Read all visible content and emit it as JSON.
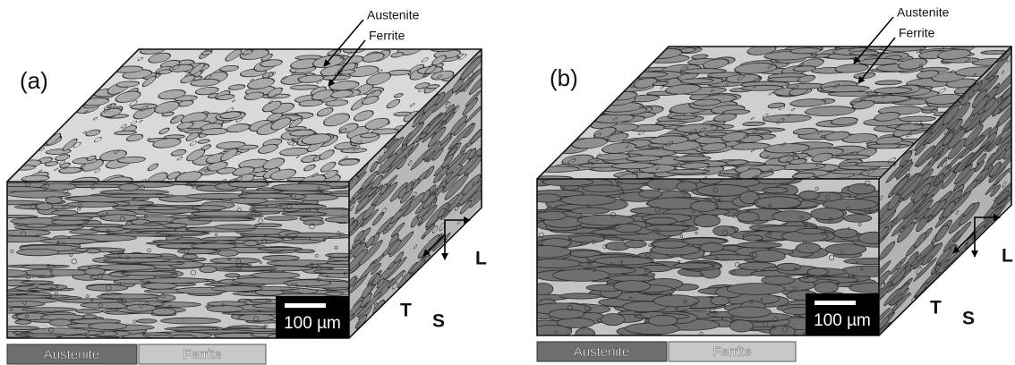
{
  "panels": [
    {
      "label": "(a)",
      "annotations": {
        "austenite": "Austenite",
        "ferrite": "Ferrite"
      },
      "scale_bar": "100 µm",
      "directions": {
        "longitudinal": "L",
        "transverse": "T",
        "short": "S"
      },
      "legend": {
        "austenite": "Austenite",
        "ferrite": "Ferrite"
      }
    },
    {
      "label": "(b)",
      "annotations": {
        "austenite": "Austenite",
        "ferrite": "Ferrite"
      },
      "scale_bar": "100 µm",
      "directions": {
        "longitudinal": "L",
        "transverse": "T",
        "short": "S"
      },
      "legend": {
        "austenite": "Austenite",
        "ferrite": "Ferrite"
      }
    }
  ]
}
